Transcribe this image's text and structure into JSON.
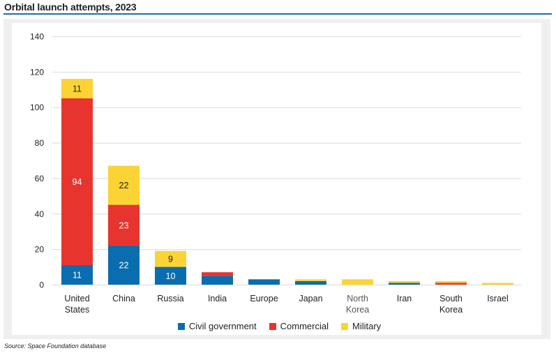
{
  "header": {
    "title": "Orbital launch attempts, 2023"
  },
  "footer": {
    "source": "Source: Space Foundation database"
  },
  "colors": {
    "title_rule": "#1a6fad",
    "panel_border": "#eef0ef",
    "gridline": "#d9d9d9",
    "civil": "#0a6daf",
    "commercial": "#e8342f",
    "military": "#fbd334"
  },
  "chart_data": {
    "type": "bar",
    "stacked": true,
    "title": "Orbital launch attempts, 2023",
    "xlabel": "",
    "ylabel": "",
    "ylim": [
      0,
      140
    ],
    "yticks": [
      0,
      20,
      40,
      60,
      80,
      100,
      120,
      140
    ],
    "grid": true,
    "legend_position": "bottom",
    "categories": [
      [
        "United",
        "States"
      ],
      [
        "China"
      ],
      [
        "Russia"
      ],
      [
        "India"
      ],
      [
        "Europe"
      ],
      [
        "Japan"
      ],
      [
        "North",
        "Korea"
      ],
      [
        "Iran"
      ],
      [
        "South",
        "Korea"
      ],
      [
        "Israel"
      ]
    ],
    "series": [
      {
        "name": "Civil government",
        "color": "#0a6daf",
        "label_color": "#ffffff",
        "values": [
          11,
          22,
          10,
          5,
          3,
          2,
          0,
          1,
          0,
          0
        ]
      },
      {
        "name": "Commercial",
        "color": "#e8342f",
        "label_color": "#ffffff",
        "values": [
          94,
          23,
          0,
          2,
          0,
          0,
          0,
          0,
          1,
          0
        ]
      },
      {
        "name": "Military",
        "color": "#fbd334",
        "label_color": "#222222",
        "values": [
          11,
          22,
          9,
          0,
          0,
          1,
          3,
          1,
          1,
          1
        ]
      }
    ],
    "data_labels": [
      {
        "category": 0,
        "series": 0,
        "text": "11"
      },
      {
        "category": 0,
        "series": 1,
        "text": "94"
      },
      {
        "category": 0,
        "series": 2,
        "text": "11"
      },
      {
        "category": 1,
        "series": 0,
        "text": "22"
      },
      {
        "category": 1,
        "series": 1,
        "text": "23"
      },
      {
        "category": 1,
        "series": 2,
        "text": "22"
      },
      {
        "category": 2,
        "series": 0,
        "text": "10"
      },
      {
        "category": 2,
        "series": 2,
        "text": "9"
      }
    ],
    "source": "Source: Space Foundation database"
  }
}
